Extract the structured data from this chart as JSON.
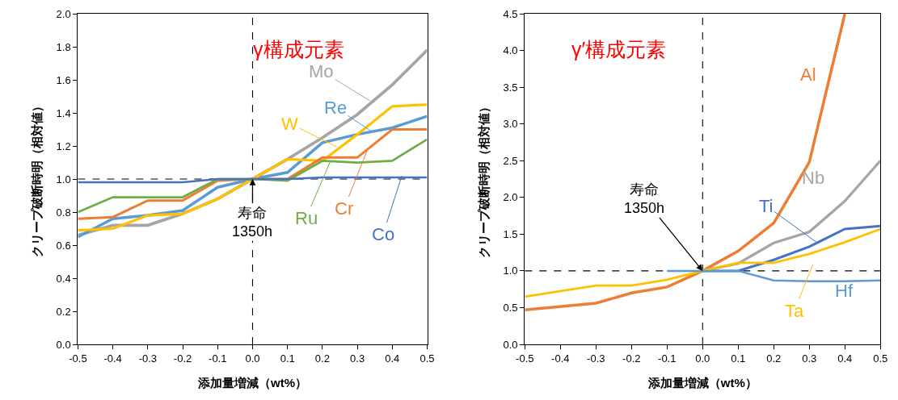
{
  "chart_data": [
    {
      "type": "line",
      "title": "γ構成元素",
      "xlabel": "添加量増減（wt%）",
      "ylabel": "クリープ破断時明（相対値）",
      "grid": false,
      "legend": false,
      "x": [
        -0.5,
        -0.4,
        -0.3,
        -0.2,
        -0.1,
        0,
        0.1,
        0.2,
        0.3,
        0.4,
        0.5
      ],
      "xlim": [
        -0.5,
        0.5
      ],
      "xticks": [
        -0.5,
        -0.4,
        -0.3,
        -0.2,
        -0.1,
        {
          "value": 0,
          "label": "0.0"
        },
        0.1,
        0.2,
        0.3,
        0.4,
        0.5
      ],
      "ylim": [
        0,
        2.0
      ],
      "yticks": [
        {
          "value": 0,
          "label": "0.0"
        },
        0.2,
        0.4,
        0.6,
        0.8,
        {
          "value": 1,
          "label": "1.0"
        },
        1.2,
        1.4,
        1.6,
        1.8,
        {
          "value": 2,
          "label": "2.0"
        }
      ],
      "series": [
        {
          "name": "Mo",
          "color": "#a5a5a5",
          "values": [
            0.66,
            0.72,
            0.72,
            0.79,
            0.88,
            1.0,
            1.12,
            1.25,
            1.39,
            1.57,
            1.78
          ]
        },
        {
          "name": "Re",
          "color": "#5b9bd5",
          "values": [
            0.65,
            0.76,
            0.78,
            0.81,
            0.95,
            1.0,
            1.04,
            1.22,
            1.27,
            1.31,
            1.38
          ]
        },
        {
          "name": "W",
          "color": "#ffc000",
          "values": [
            0.69,
            0.7,
            0.78,
            0.79,
            0.88,
            1.0,
            1.12,
            1.11,
            1.27,
            1.44,
            1.45
          ]
        },
        {
          "name": "Cr",
          "color": "#ed7d31",
          "values": [
            0.76,
            0.77,
            0.87,
            0.87,
            0.99,
            1.0,
            1.0,
            1.13,
            1.13,
            1.3,
            1.3
          ]
        },
        {
          "name": "Ru",
          "color": "#70ad47",
          "values": [
            0.8,
            0.89,
            0.89,
            0.89,
            1.0,
            1.0,
            0.99,
            1.11,
            1.1,
            1.11,
            1.24
          ]
        },
        {
          "name": "Co",
          "color": "#4472c4",
          "values": [
            0.98,
            0.98,
            0.98,
            0.98,
            1.0,
            1.0,
            1.0,
            1.01,
            1.01,
            1.01,
            1.01
          ]
        }
      ],
      "ref_lines": [
        {
          "axis": "y",
          "value": 1.0,
          "color": "#000000",
          "line_style": "dashed"
        },
        {
          "axis": "x",
          "value": 0,
          "color": "#000000",
          "line_style": "dashed"
        }
      ],
      "annotations": [
        {
          "text": "寿命\n1350h",
          "x": 0,
          "y": 1.0
        }
      ]
    },
    {
      "type": "line",
      "title": "γ′構成元素",
      "xlabel": "添加量増減（wt%）",
      "ylabel": "クリープ破断時明（相対値）",
      "grid": false,
      "legend": false,
      "xlim": [
        -0.5,
        0.5
      ],
      "xticks": [
        -0.5,
        -0.4,
        -0.3,
        -0.2,
        -0.1,
        {
          "value": 0,
          "label": "0.0"
        },
        0.1,
        0.2,
        0.3,
        0.4,
        0.5
      ],
      "ylim": [
        0,
        4.5
      ],
      "yticks": [
        {
          "value": 0,
          "label": "0.0"
        },
        0.5,
        {
          "value": 1,
          "label": "1.0"
        },
        1.5,
        {
          "value": 2,
          "label": "2.0"
        },
        2.5,
        {
          "value": 3,
          "label": "3.0"
        },
        3.5,
        {
          "value": 4,
          "label": "4.0"
        },
        4.5
      ],
      "series": [
        {
          "name": "Al",
          "color": "#ed7d31",
          "x": [
            -0.5,
            -0.3,
            -0.2,
            -0.1,
            0,
            0.1,
            0.2,
            0.3,
            0.4
          ],
          "values": [
            0.47,
            0.56,
            0.7,
            0.78,
            1.0,
            1.27,
            1.65,
            2.48,
            4.5
          ]
        },
        {
          "name": "Nb",
          "color": "#a5a5a5",
          "x": [
            0,
            0.1,
            0.2,
            0.3,
            0.4,
            0.5
          ],
          "values": [
            1.0,
            1.1,
            1.38,
            1.53,
            1.95,
            2.5
          ]
        },
        {
          "name": "Ti",
          "color": "#4472c4",
          "x": [
            0,
            0.1,
            0.2,
            0.3,
            0.4,
            0.5
          ],
          "values": [
            1.0,
            1.0,
            1.15,
            1.33,
            1.57,
            1.61
          ]
        },
        {
          "name": "Ta",
          "color": "#ffc000",
          "x": [
            -0.5,
            -0.3,
            -0.2,
            -0.1,
            0,
            0.1,
            0.2,
            0.3,
            0.4,
            0.5
          ],
          "values": [
            0.65,
            0.8,
            0.8,
            0.88,
            1.0,
            1.11,
            1.11,
            1.23,
            1.39,
            1.57
          ]
        },
        {
          "name": "Hf",
          "color": "#5b9bd5",
          "x": [
            -0.1,
            0,
            0.1,
            0.2,
            0.3,
            0.4,
            0.5
          ],
          "values": [
            1.0,
            1.0,
            1.0,
            0.87,
            0.86,
            0.86,
            0.87
          ]
        }
      ],
      "ref_lines": [
        {
          "axis": "y",
          "value": 1.0,
          "color": "#000000",
          "line_style": "dashed"
        },
        {
          "axis": "x",
          "value": 0,
          "color": "#000000",
          "line_style": "dashed"
        }
      ],
      "annotations": [
        {
          "text": "寿命\n1350h",
          "x": 0,
          "y": 1.0
        }
      ]
    }
  ]
}
